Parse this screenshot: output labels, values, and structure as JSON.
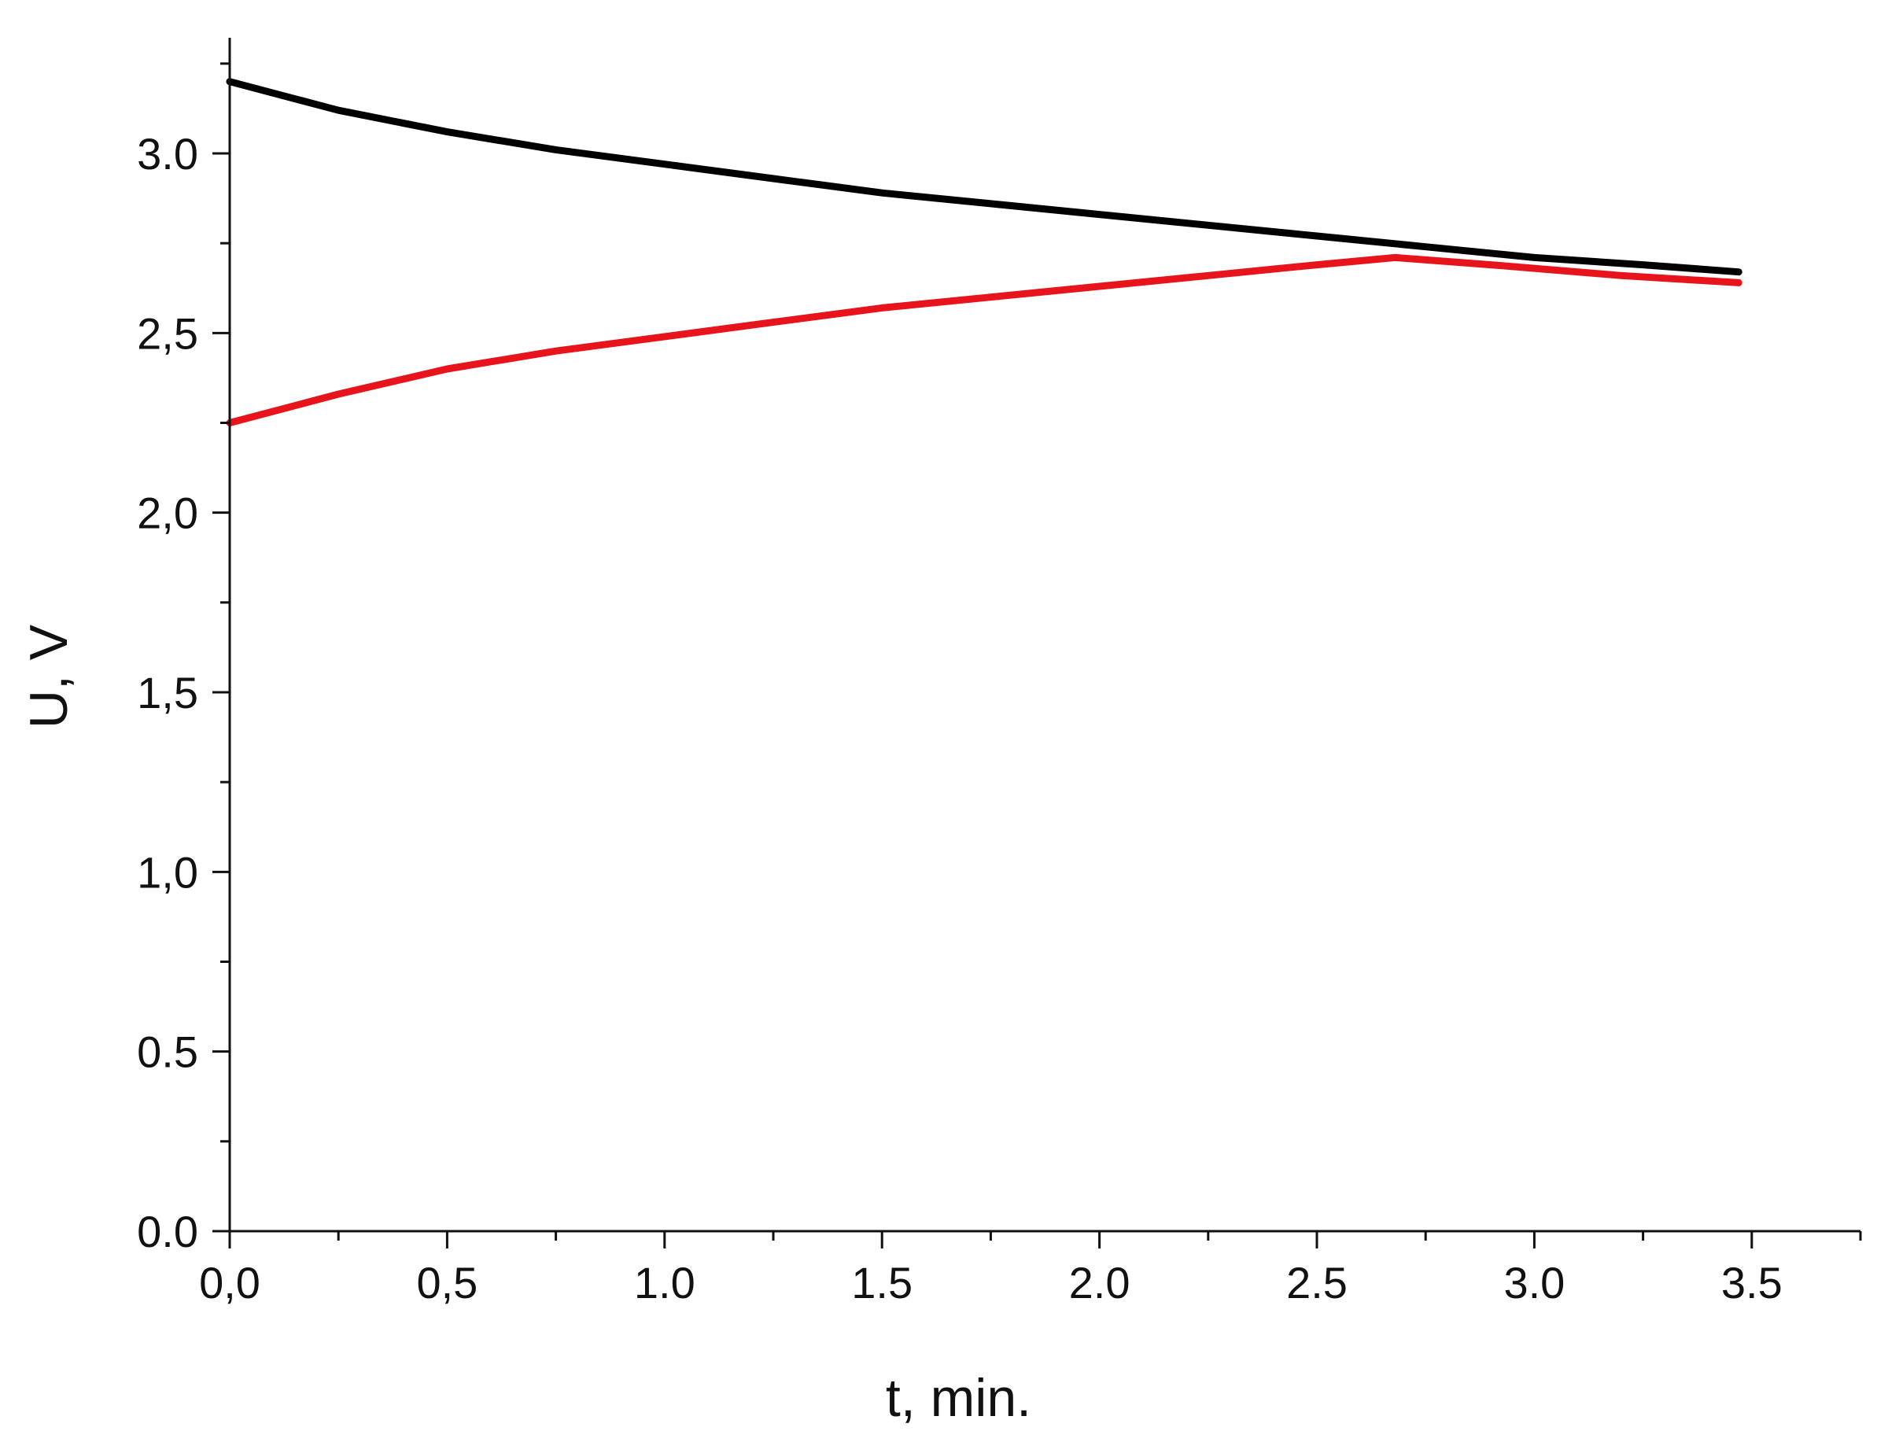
{
  "chart_data": {
    "type": "line",
    "title": "",
    "xlabel": "t,  min.",
    "ylabel": "U,  V",
    "xlim": [
      0.0,
      3.75
    ],
    "ylim": [
      0.0,
      3.3
    ],
    "x_ticks": [
      0.0,
      0.5,
      1.0,
      1.5,
      2.0,
      2.5,
      3.0,
      3.5
    ],
    "x_tick_labels": [
      "0,0",
      "0,5",
      "1.0",
      "1.5",
      "2.0",
      "2.5",
      "3.0",
      "3.5"
    ],
    "y_ticks": [
      0.0,
      0.5,
      1.0,
      1.5,
      2.0,
      2.5,
      3.0
    ],
    "y_tick_labels": [
      "0.0",
      "0.5",
      "1,0",
      "1,5",
      "2,0",
      "2,5",
      "3.0"
    ],
    "grid": false,
    "legend": "none",
    "series": [
      {
        "color": "#000000",
        "x": [
          0.0,
          0.25,
          0.5,
          0.75,
          1.0,
          1.25,
          1.5,
          1.75,
          2.0,
          2.25,
          2.5,
          2.75,
          3.0,
          3.25,
          3.47
        ],
        "y": [
          3.2,
          3.12,
          3.06,
          3.01,
          2.97,
          2.93,
          2.89,
          2.86,
          2.83,
          2.8,
          2.77,
          2.74,
          2.71,
          2.69,
          2.67
        ]
      },
      {
        "color": "#e8141b",
        "x": [
          0.0,
          0.25,
          0.5,
          0.75,
          1.0,
          1.25,
          1.5,
          1.75,
          2.0,
          2.25,
          2.5,
          2.68,
          2.9,
          3.2,
          3.47
        ],
        "y": [
          2.25,
          2.33,
          2.4,
          2.45,
          2.49,
          2.53,
          2.57,
          2.6,
          2.63,
          2.66,
          2.69,
          2.71,
          2.69,
          2.66,
          2.64
        ]
      }
    ]
  }
}
